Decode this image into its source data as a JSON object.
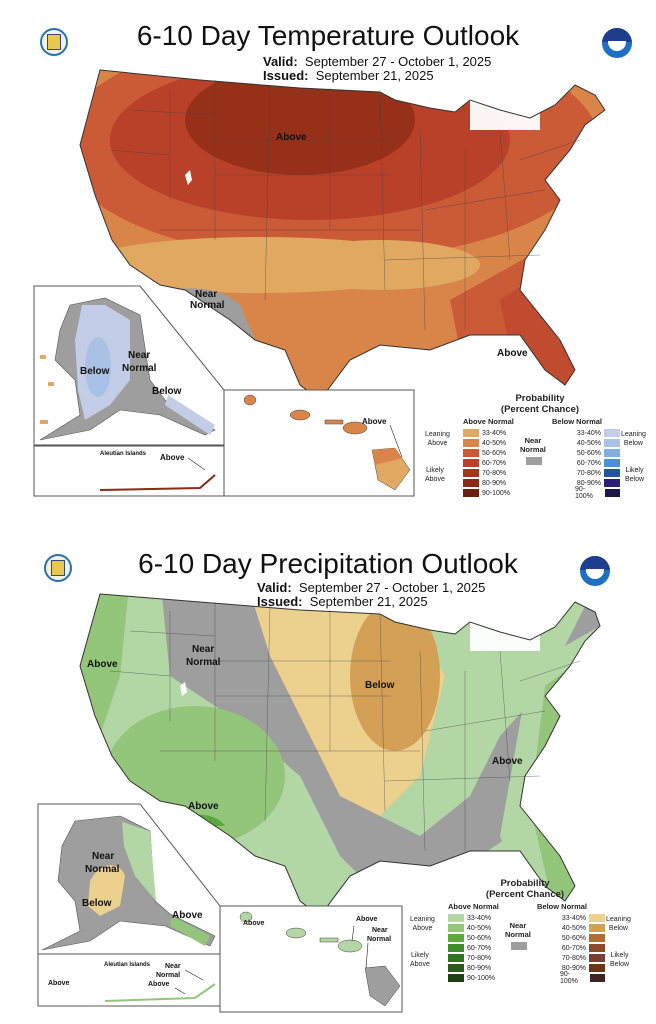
{
  "temperature": {
    "title": "6-10 Day Temperature Outlook",
    "valid_label": "Valid:",
    "valid_value": "September 27 - October 1, 2025",
    "issued_label": "Issued:",
    "issued_value": "September 21, 2025",
    "map_labels": {
      "conus_north": "Above",
      "conus_southwest_line1": "Near",
      "conus_southwest_line2": "Normal",
      "conus_florida": "Above",
      "alaska_west": "Below",
      "alaska_center_line1": "Near",
      "alaska_center_line2": "Normal",
      "alaska_southeast": "Below",
      "aleutian_title": "Aleutian Islands",
      "aleutian": "Above",
      "hawaii": "Above"
    },
    "legend": {
      "title_line1": "Probability",
      "title_line2": "(Percent Chance)",
      "above_header": "Above Normal",
      "below_header": "Below Normal",
      "near_line1": "Near",
      "near_line2": "Normal",
      "leaning_above_1": "Leaning",
      "leaning_above_2": "Above",
      "likely_above_1": "Likely",
      "likely_above_2": "Above",
      "leaning_below_1": "Leaning",
      "leaning_below_2": "Below",
      "likely_below_1": "Likely",
      "likely_below_2": "Below",
      "above": [
        {
          "range": "33-40%",
          "color": "#e0a860"
        },
        {
          "range": "40-50%",
          "color": "#d9854a"
        },
        {
          "range": "50-60%",
          "color": "#cb5a36"
        },
        {
          "range": "60-70%",
          "color": "#b9412a"
        },
        {
          "range": "70-80%",
          "color": "#a63420"
        },
        {
          "range": "80-90%",
          "color": "#8a2a16"
        },
        {
          "range": "90-100%",
          "color": "#6b200f"
        }
      ],
      "below": [
        {
          "range": "33-40%",
          "color": "#c3cde8"
        },
        {
          "range": "40-50%",
          "color": "#a9c1e4"
        },
        {
          "range": "50-60%",
          "color": "#7fb0e0"
        },
        {
          "range": "60-70%",
          "color": "#4a90d6"
        },
        {
          "range": "70-80%",
          "color": "#22559f"
        },
        {
          "range": "80-90%",
          "color": "#2b1e7a"
        },
        {
          "range": "90-100%",
          "color": "#1c1548"
        }
      ],
      "near_color": "#9e9e9e"
    }
  },
  "precipitation": {
    "title": "6-10 Day Precipitation Outlook",
    "valid_label": "Valid:",
    "valid_value": "September 27 - October 1, 2025",
    "issued_label": "Issued:",
    "issued_value": "September 21, 2025",
    "map_labels": {
      "conus_northwest": "Above",
      "conus_rockies_line1": "Near",
      "conus_rockies_line2": "Normal",
      "conus_midwest": "Below",
      "conus_southwest": "Above",
      "conus_east": "Above",
      "alaska_center_line1": "Near",
      "alaska_center_line2": "Normal",
      "alaska_southwest": "Below",
      "alaska_southeast": "Above",
      "aleutian_title": "Aleutian Islands",
      "aleutian_west": "Above",
      "aleutian_east_near_line1": "Near",
      "aleutian_east_near_line2": "Normal",
      "aleutian_east_above": "Above",
      "hawaii_west": "Above",
      "hawaii_maui": "Above",
      "hawaii_big_island_line1": "Near",
      "hawaii_big_island_line2": "Normal"
    },
    "legend": {
      "title_line1": "Probability",
      "title_line2": "(Percent Chance)",
      "above_header": "Above Normal",
      "below_header": "Below Normal",
      "near_line1": "Near",
      "near_line2": "Normal",
      "leaning_above_1": "Leaning",
      "leaning_above_2": "Above",
      "likely_above_1": "Likely",
      "likely_above_2": "Above",
      "leaning_below_1": "Leaning",
      "leaning_below_2": "Below",
      "likely_below_1": "Likely",
      "likely_below_2": "Below",
      "above": [
        {
          "range": "33-40%",
          "color": "#b3d6a5"
        },
        {
          "range": "40-50%",
          "color": "#93c57a"
        },
        {
          "range": "50-60%",
          "color": "#5aa93c"
        },
        {
          "range": "60-70%",
          "color": "#3e8c2a"
        },
        {
          "range": "70-80%",
          "color": "#2f7323"
        },
        {
          "range": "80-90%",
          "color": "#2a5a1c"
        },
        {
          "range": "90-100%",
          "color": "#1e4212"
        }
      ],
      "below": [
        {
          "range": "33-40%",
          "color": "#ecd08e"
        },
        {
          "range": "40-50%",
          "color": "#d4a055"
        },
        {
          "range": "50-60%",
          "color": "#b36a36"
        },
        {
          "range": "60-70%",
          "color": "#8e4a2c"
        },
        {
          "range": "70-80%",
          "color": "#7a3e32"
        },
        {
          "range": "80-90%",
          "color": "#6a3614"
        },
        {
          "range": "90-100%",
          "color": "#3e2422"
        }
      ],
      "near_color": "#9e9e9e"
    }
  }
}
